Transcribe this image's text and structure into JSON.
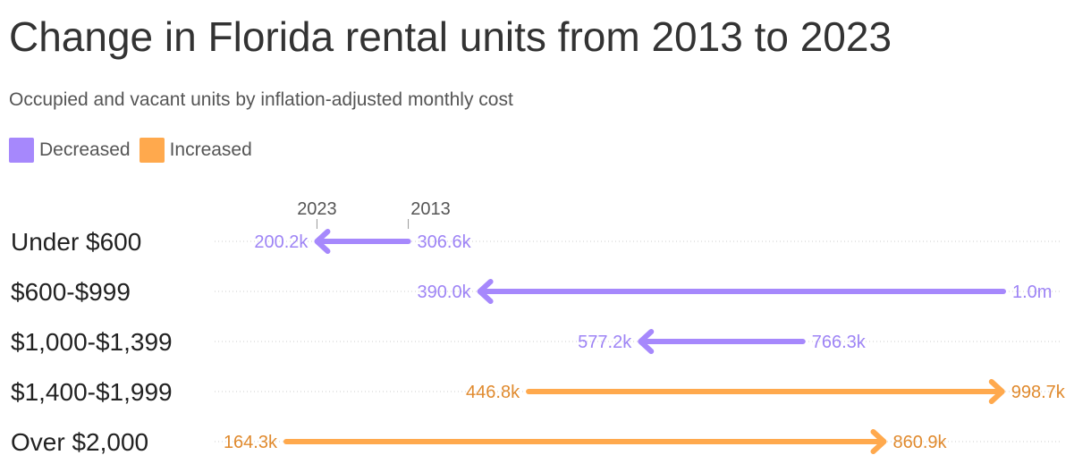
{
  "title": "Change in Florida rental units from 2013 to 2023",
  "subtitle": "Occupied and vacant units by inflation-adjusted monthly cost",
  "legend": [
    {
      "label": "Decreased",
      "color": "#a688fc"
    },
    {
      "label": "Increased",
      "color": "#ffa94d"
    }
  ],
  "colors": {
    "decreased_text": "#9e84f5",
    "increased_text": "#e08a2e"
  },
  "chart_data": {
    "type": "arrow",
    "start_label": "2013",
    "end_label": "2023",
    "xlim": [
      164300,
      1000000
    ],
    "categories": [
      {
        "label": "Under $600",
        "start": 306600,
        "end": 200200,
        "start_label": "306.6k",
        "end_label": "200.2k",
        "direction": "Decreased"
      },
      {
        "label": "$600-$999",
        "start": 1000000,
        "end": 390000,
        "start_label": "1.0m",
        "end_label": "390.0k",
        "direction": "Decreased"
      },
      {
        "label": "$1,000-$1,399",
        "start": 766300,
        "end": 577200,
        "start_label": "766.3k",
        "end_label": "577.2k",
        "direction": "Decreased"
      },
      {
        "label": "$1,400-$1,999",
        "start": 446800,
        "end": 998700,
        "start_label": "446.8k",
        "end_label": "998.7k",
        "direction": "Increased"
      },
      {
        "label": "Over $2,000",
        "start": 164300,
        "end": 860900,
        "start_label": "164.3k",
        "end_label": "860.9k",
        "direction": "Increased"
      }
    ]
  }
}
